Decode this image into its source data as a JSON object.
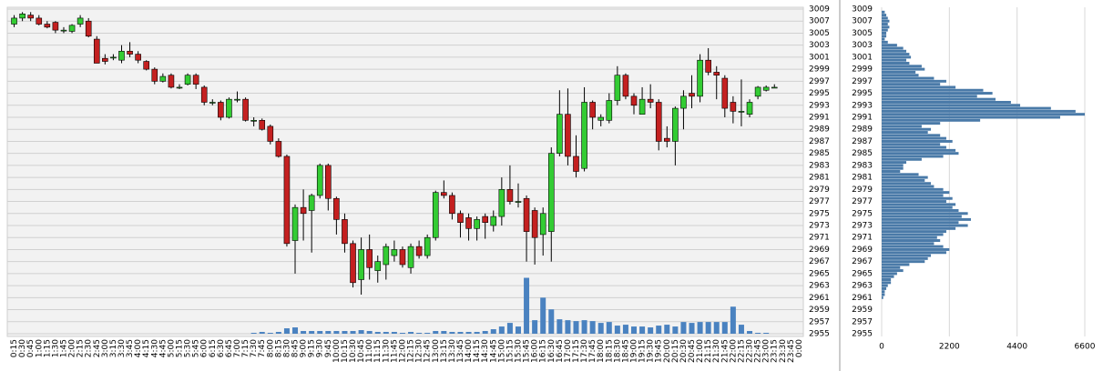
{
  "chart_data": [
    {
      "type": "candlestick",
      "categories": [
        "0:15",
        "0:30",
        "0:45",
        "1:00",
        "1:15",
        "1:30",
        "1:45",
        "2:00",
        "2:15",
        "2:30",
        "2:45",
        "3:00",
        "3:15",
        "3:30",
        "3:45",
        "4:00",
        "4:15",
        "4:30",
        "4:45",
        "5:00",
        "5:15",
        "5:30",
        "5:45",
        "6:00",
        "6:15",
        "6:30",
        "6:45",
        "7:00",
        "7:15",
        "7:30",
        "7:45",
        "8:00",
        "8:15",
        "8:30",
        "8:45",
        "9:00",
        "9:15",
        "9:30",
        "9:45",
        "10:00",
        "10:15",
        "10:30",
        "10:45",
        "11:00",
        "11:15",
        "11:30",
        "11:45",
        "12:00",
        "12:15",
        "12:30",
        "12:45",
        "13:00",
        "13:15",
        "13:30",
        "13:45",
        "14:00",
        "14:15",
        "14:30",
        "14:45",
        "15:00",
        "15:15",
        "15:30",
        "15:45",
        "16:00",
        "16:15",
        "16:30",
        "16:45",
        "17:00",
        "17:15",
        "17:30",
        "17:45",
        "18:00",
        "18:15",
        "18:30",
        "18:45",
        "19:00",
        "19:15",
        "19:30",
        "19:45",
        "20:00",
        "20:15",
        "20:30",
        "20:45",
        "21:00",
        "21:15",
        "21:30",
        "21:45",
        "22:00",
        "22:15",
        "22:30",
        "22:45",
        "23:00",
        "23:15",
        "23:30",
        "23:45",
        "0:00"
      ],
      "open": [
        3006.5,
        3007.5,
        3008,
        3007.5,
        3006.5,
        3006.8,
        3005.5,
        3005.3,
        3006.5,
        3007,
        3004,
        3000.8,
        3001,
        3000.5,
        3002,
        3001.5,
        3000.3,
        2999,
        2997,
        2998,
        2996,
        2996.5,
        2998,
        2996,
        2993.5,
        2993.5,
        2991,
        2994,
        2994,
        2990.5,
        2990.5,
        2989.5,
        2987,
        2984.5,
        2970.5,
        2976,
        2975.5,
        2978,
        2983,
        2977.5,
        2974,
        2970,
        2964,
        2969,
        2965.5,
        2966.5,
        2968,
        2969,
        2966,
        2969.5,
        2968,
        2971,
        2978.5,
        2978,
        2975,
        2974.3,
        2972.5,
        2974.5,
        2973,
        2974.5,
        2979,
        2977,
        2977.5,
        2975.5,
        2971.5,
        2972,
        2985,
        2991.5,
        2984.5,
        2982.5,
        2993.5,
        2990.5,
        2990.5,
        2993.8,
        2998,
        2994.5,
        2991.5,
        2994,
        2993.5,
        2987.5,
        2987,
        2992.5,
        2995,
        2994.5,
        3000.5,
        2998.5,
        2997.5,
        2993.5,
        2992,
        2991.5,
        2994.5,
        2995.5,
        2996,
        null,
        null,
        null
      ],
      "high": [
        3008,
        3008.5,
        3008.5,
        3008,
        3007,
        3007,
        3006,
        3006.5,
        3008,
        3007.5,
        3004.5,
        3001.5,
        3001.5,
        3003,
        3003.5,
        3002,
        3000.5,
        2999.3,
        2998.3,
        2998.3,
        2996.5,
        2998.3,
        2998.3,
        2996.3,
        2994,
        2993.8,
        2994.3,
        2995.3,
        2994.3,
        2991,
        2990.8,
        2989.8,
        2987.5,
        2984.8,
        2976.5,
        2979,
        2978.3,
        2983.3,
        2983.3,
        2977.8,
        2975,
        2970.5,
        2971,
        2971.5,
        2968,
        2970,
        2970.5,
        2969.5,
        2970,
        2970.5,
        2971.5,
        2978.8,
        2980.5,
        2978.5,
        2975.5,
        2975,
        2974.5,
        2975,
        2975.5,
        2981,
        2983,
        2980,
        2978,
        2976,
        2976,
        2986,
        2995.5,
        2995.8,
        2988,
        2996,
        2993.8,
        2991.5,
        2995,
        2999.5,
        2998.3,
        2995,
        2996,
        2996.5,
        2994,
        2989.5,
        2992.8,
        2995.5,
        2998,
        3001.5,
        3002.5,
        2999.5,
        2998,
        2994.5,
        2997.3,
        2994,
        2996.2,
        2996.3,
        2996.5,
        null,
        null,
        null
      ],
      "low": [
        3006,
        3007,
        3007,
        3006.3,
        3005.8,
        3005,
        3005,
        3005,
        3006,
        3004.3,
        3000,
        2999.8,
        3000.5,
        3000,
        3001,
        3000,
        2998.8,
        2996.5,
        2996.8,
        2995.8,
        2995.7,
        2996.3,
        2995.7,
        2993,
        2993,
        2990.5,
        2990.8,
        2993.5,
        2990.3,
        2989.5,
        2988.8,
        2986.5,
        2984.3,
        2969.5,
        2965,
        2970.5,
        2968.5,
        2977.5,
        2975.5,
        2971.5,
        2968.5,
        2962.7,
        2961.5,
        2964,
        2963.5,
        2964,
        2967,
        2966,
        2965,
        2967.5,
        2967.5,
        2970.5,
        2977.5,
        2974,
        2971,
        2970.5,
        2970.5,
        2970.8,
        2972,
        2973,
        2976.5,
        2976,
        2967,
        2966.5,
        2968,
        2967,
        2984.5,
        2983,
        2981,
        2982,
        2989,
        2989.5,
        2990,
        2993,
        2994,
        2991.5,
        2991.5,
        2992.5,
        2985.5,
        2986,
        2983,
        2989,
        2992.5,
        2993.5,
        2998,
        2994,
        2991,
        2990,
        2989.5,
        2991,
        2994,
        2995.3,
        2996,
        null,
        null,
        null
      ],
      "close": [
        3007.5,
        3008.2,
        3007.5,
        3006.5,
        3006,
        3005.5,
        3005.5,
        3006.3,
        3007.5,
        3004.5,
        3000,
        3000.3,
        3001,
        3002,
        3001.5,
        3000.5,
        2999,
        2997,
        2997.8,
        2996,
        2996,
        2998,
        2996.5,
        2993.5,
        2993.5,
        2991,
        2994,
        2994,
        2990.5,
        2990.5,
        2989,
        2987,
        2984.5,
        2970,
        2976,
        2975,
        2978,
        2983,
        2977.5,
        2974,
        2970,
        2963.5,
        2969,
        2966,
        2967,
        2969.5,
        2969,
        2966.5,
        2969.5,
        2968,
        2971,
        2978.5,
        2978,
        2975,
        2973.5,
        2972.5,
        2974,
        2973.5,
        2974.5,
        2979,
        2977,
        2977,
        2972,
        2971,
        2975,
        2985,
        2991.5,
        2984.5,
        2982,
        2993.5,
        2991,
        2991,
        2993.8,
        2998,
        2994.5,
        2993,
        2994,
        2993.5,
        2987,
        2987,
        2992.5,
        2994.5,
        2994.5,
        3000.5,
        2998.5,
        2998,
        2992.5,
        2992,
        2992,
        2993.5,
        2996,
        2996,
        2996,
        null,
        null,
        null
      ],
      "volume": [
        0,
        0,
        0,
        0,
        0,
        0,
        0,
        0,
        0,
        0,
        0,
        0,
        0,
        0,
        0,
        0,
        0,
        0,
        0,
        0,
        0,
        0,
        0,
        0,
        0,
        0,
        0,
        0,
        0,
        1,
        2,
        1,
        2,
        6,
        7,
        3,
        3,
        3,
        3,
        3,
        3,
        3,
        4,
        3,
        2,
        2,
        2,
        1,
        2,
        1,
        1,
        3,
        3,
        2,
        2,
        2,
        2,
        3,
        5,
        8,
        12,
        8,
        62,
        15,
        40,
        27,
        16,
        15,
        14,
        15,
        14,
        12,
        13,
        9,
        10,
        8,
        8,
        7,
        9,
        10,
        8,
        13,
        12,
        13,
        13,
        13,
        13,
        30,
        10,
        3,
        1,
        1,
        0,
        null,
        null,
        null
      ],
      "ylim": [
        2955,
        3009
      ],
      "yticks": [
        2955,
        2957,
        2959,
        2961,
        2963,
        2965,
        2967,
        2969,
        2971,
        2973,
        2975,
        2977,
        2979,
        2981,
        2983,
        2985,
        2987,
        2989,
        2991,
        2993,
        2995,
        2997,
        2999,
        3001,
        3003,
        3005,
        3007,
        3009
      ],
      "vlim": [
        0,
        360
      ],
      "up_color": "#33cc33",
      "down_color": "#c42020",
      "volume_color": "#4a82c0",
      "grid": true
    },
    {
      "type": "bar",
      "orientation": "horizontal",
      "levels": [
        3008.5,
        3008,
        3007.5,
        3007,
        3006.5,
        3006,
        3005.5,
        3005,
        3004.5,
        3004,
        3003.5,
        3003,
        3002.5,
        3002,
        3001.5,
        3001,
        3000.5,
        3000,
        2999.5,
        2999,
        2998.5,
        2998,
        2997.5,
        2997,
        2996.5,
        2996,
        2995.5,
        2995,
        2994.5,
        2994,
        2993.5,
        2993,
        2992.5,
        2992,
        2991.5,
        2991,
        2990.5,
        2990,
        2989.5,
        2989,
        2988.5,
        2988,
        2987.5,
        2987,
        2986.5,
        2986,
        2985.5,
        2985,
        2984.5,
        2984,
        2983.5,
        2983,
        2982.5,
        2982,
        2981.5,
        2981,
        2980.5,
        2980,
        2979.5,
        2979,
        2978.5,
        2978,
        2977.5,
        2977,
        2976.5,
        2976,
        2975.5,
        2975,
        2974.5,
        2974,
        2973.5,
        2973,
        2972.5,
        2972,
        2971.5,
        2971,
        2970.5,
        2970,
        2969.5,
        2969,
        2968.5,
        2968,
        2967.5,
        2967,
        2966.5,
        2966,
        2965.5,
        2965,
        2964.5,
        2964,
        2963.5,
        2963,
        2962.5,
        2962,
        2961.5,
        2961
      ],
      "values": [
        100,
        150,
        200,
        250,
        200,
        250,
        200,
        150,
        150,
        100,
        200,
        500,
        700,
        800,
        900,
        950,
        800,
        900,
        1300,
        1400,
        1100,
        1200,
        1700,
        2100,
        1900,
        2400,
        3300,
        3600,
        3100,
        3700,
        4200,
        4500,
        5500,
        6300,
        6600,
        5800,
        3200,
        1900,
        1300,
        1600,
        1500,
        1900,
        2100,
        2300,
        1900,
        2100,
        2400,
        2500,
        2000,
        1300,
        800,
        700,
        700,
        600,
        1200,
        1500,
        1400,
        1600,
        1700,
        2000,
        2200,
        2000,
        2300,
        2100,
        2400,
        2300,
        2500,
        2800,
        2600,
        2900,
        2500,
        2800,
        2400,
        2100,
        2000,
        1800,
        1900,
        1700,
        2000,
        2200,
        2100,
        1600,
        1500,
        1400,
        900,
        600,
        700,
        500,
        400,
        300,
        300,
        200,
        150,
        100,
        100,
        50
      ],
      "xlim": [
        0,
        6600
      ],
      "xticks": [
        0,
        2200,
        4400,
        6600
      ],
      "ylim": [
        2955,
        3009
      ],
      "yticks": [
        2955,
        2957,
        2959,
        2961,
        2963,
        2965,
        2967,
        2969,
        2971,
        2973,
        2975,
        2977,
        2979,
        2981,
        2983,
        2985,
        2987,
        2989,
        2991,
        2993,
        2995,
        2997,
        2999,
        3001,
        3003,
        3005,
        3007,
        3009
      ],
      "color": "#4a7aa8",
      "grid": true
    }
  ]
}
